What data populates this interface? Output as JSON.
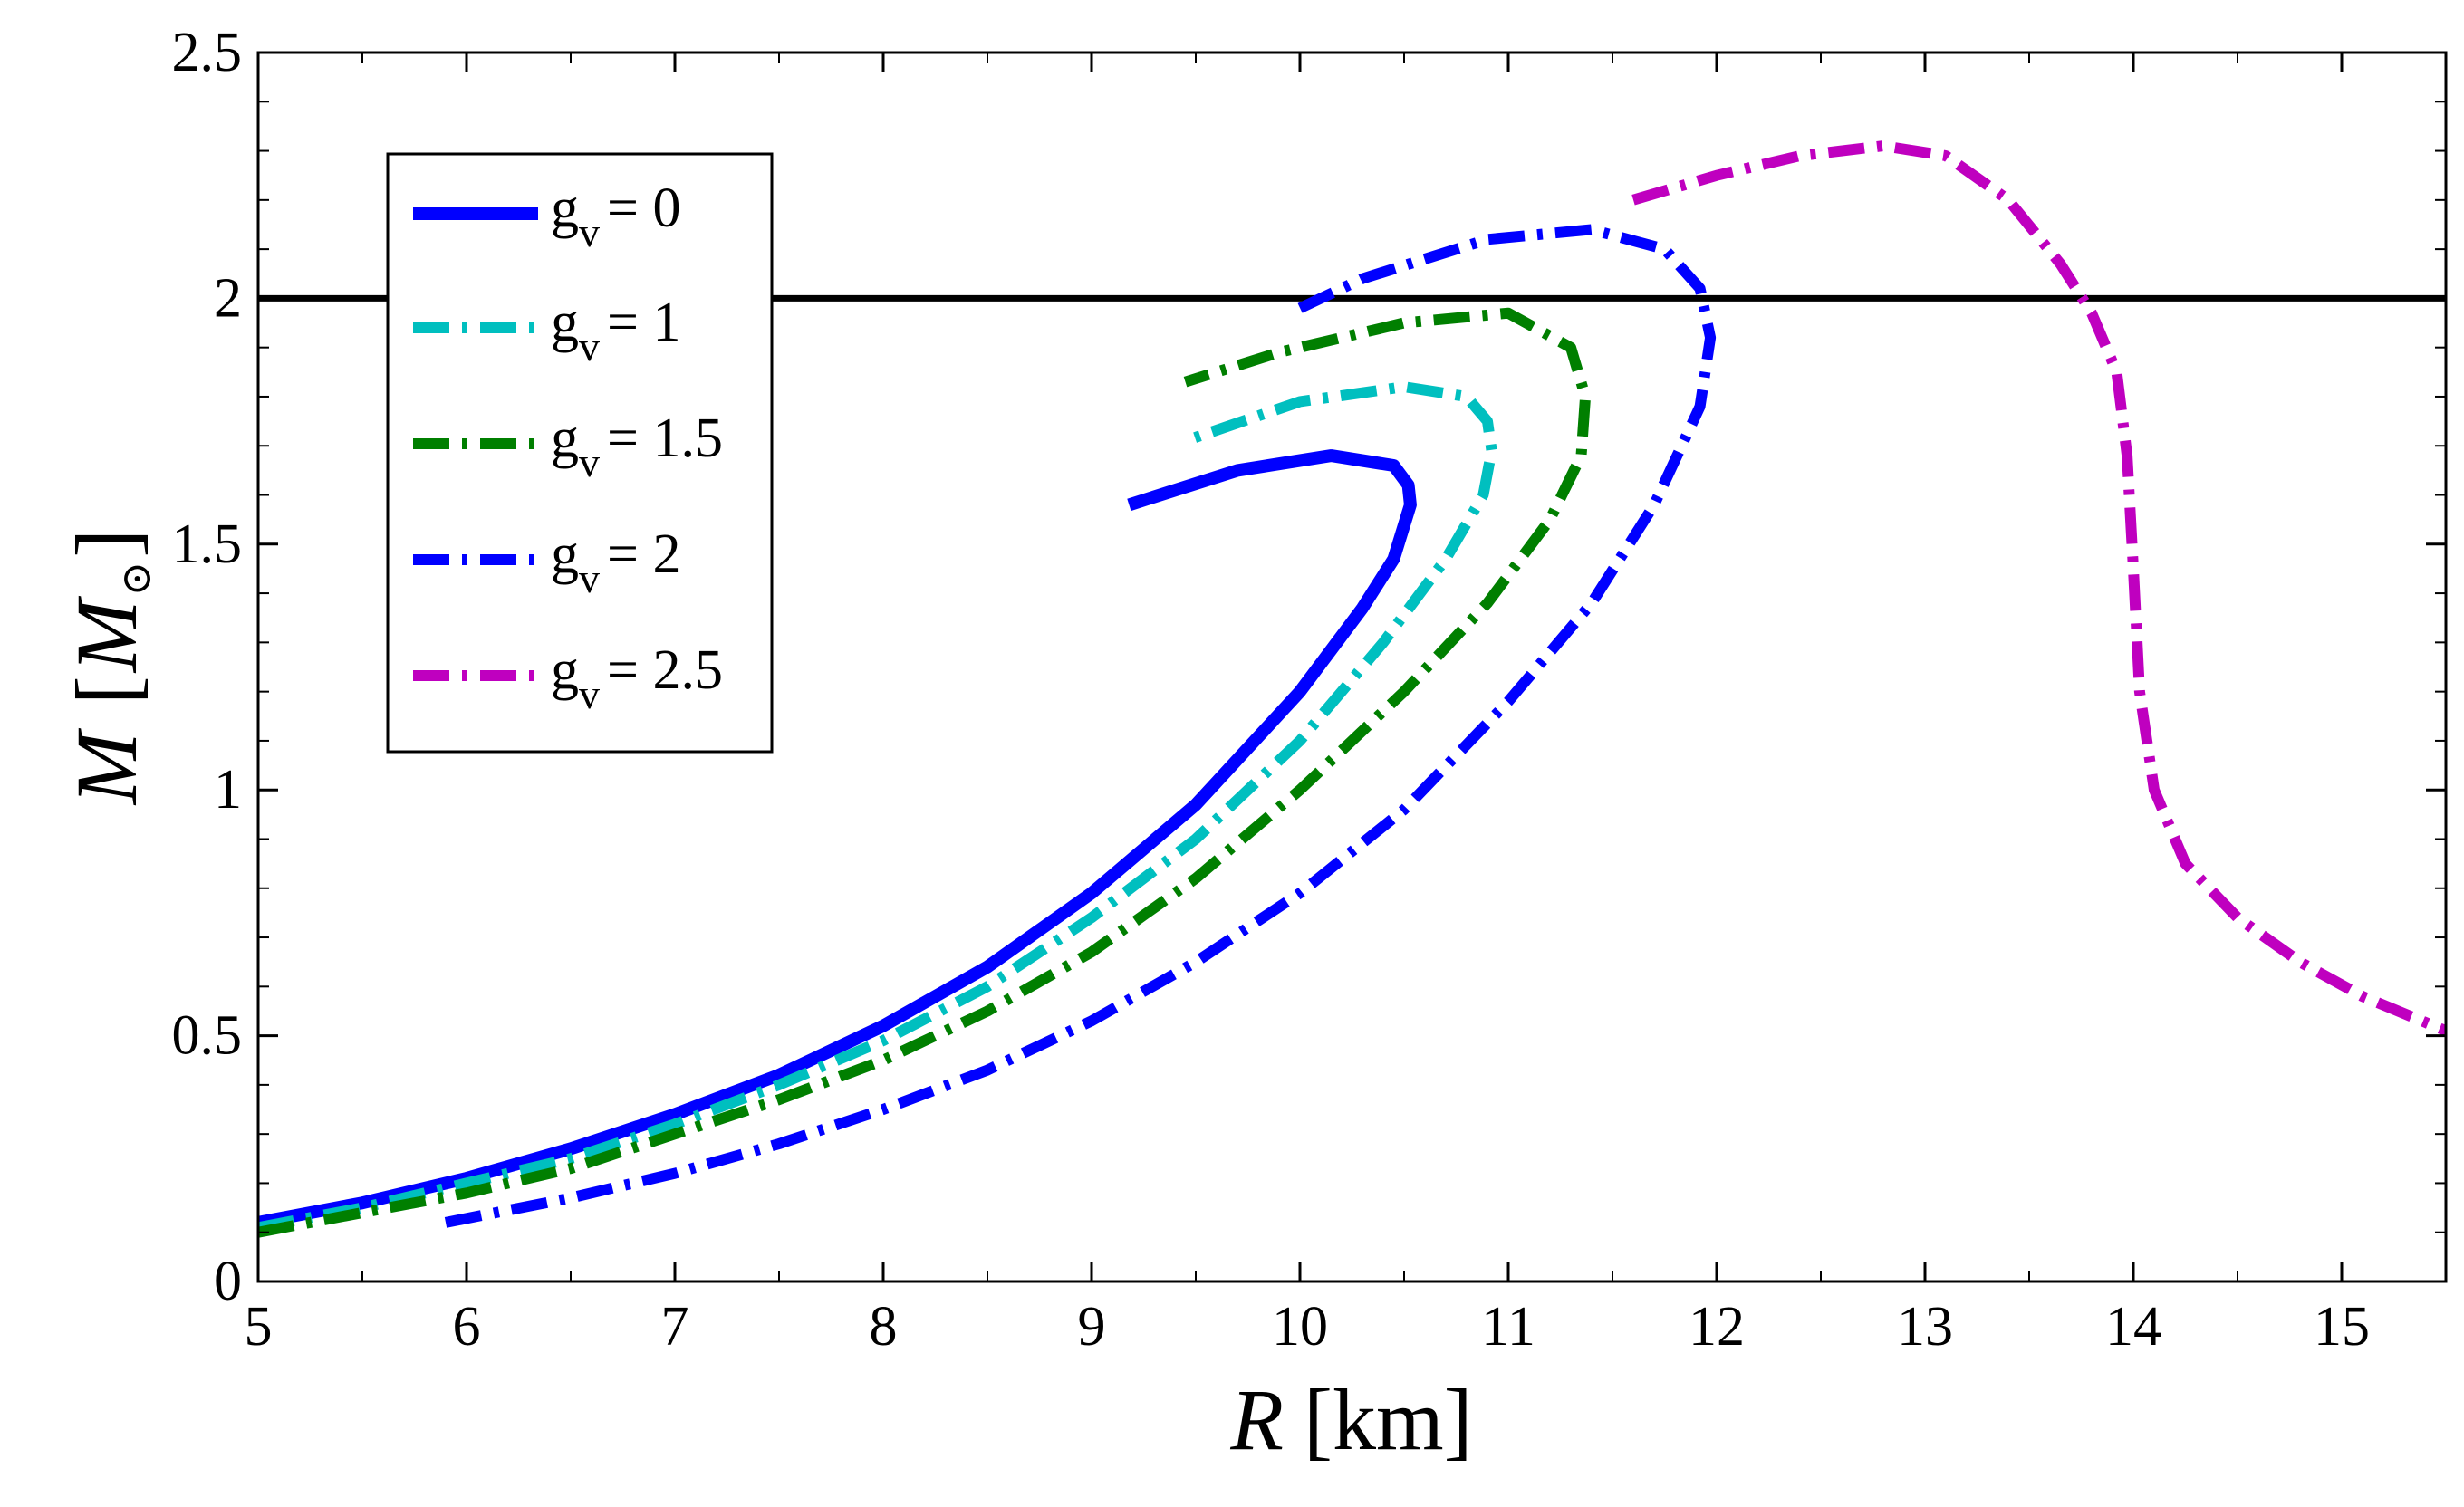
{
  "chart_data": {
    "type": "line",
    "title": "",
    "xlabel": {
      "var": "R",
      "unit": "[km]"
    },
    "ylabel": {
      "var": "M",
      "unit_open": "[",
      "unit_sym": "M",
      "unit_sub": "⊙",
      "unit_close": "]"
    },
    "xlim": [
      5,
      15.5
    ],
    "ylim": [
      0,
      2.5
    ],
    "xticks": [
      "5",
      "6",
      "7",
      "8",
      "9",
      "10",
      "11",
      "12",
      "13",
      "14",
      "15"
    ],
    "yticks": [
      "0",
      "0.5",
      "1",
      "1.5",
      "2",
      "2.5"
    ],
    "grid": false,
    "legend_position": "top-left",
    "reference_line": {
      "y": 2.0,
      "color": "#000000"
    },
    "series": [
      {
        "name": "g_v = 0",
        "label_main": "g",
        "label_sub": "v",
        "label_value": "= 0",
        "color": "#0000ff",
        "style": "solid",
        "x": [
          5.0,
          5.5,
          6.0,
          6.5,
          7.0,
          7.5,
          8.0,
          8.5,
          9.0,
          9.5,
          10.0,
          10.3,
          10.45,
          10.53,
          10.52,
          10.45,
          10.15,
          9.7,
          9.18
        ],
        "y": [
          0.12,
          0.16,
          0.21,
          0.27,
          0.34,
          0.42,
          0.52,
          0.64,
          0.79,
          0.97,
          1.2,
          1.37,
          1.47,
          1.58,
          1.62,
          1.66,
          1.68,
          1.65,
          1.58
        ]
      },
      {
        "name": "g_v = 1",
        "label_main": "g",
        "label_sub": "v",
        "label_value": "= 1",
        "color": "#00bfbf",
        "style": "dashdot",
        "x": [
          5.0,
          5.5,
          6.0,
          6.5,
          7.0,
          7.5,
          8.0,
          8.5,
          9.0,
          9.5,
          10.0,
          10.4,
          10.7,
          10.88,
          10.92,
          10.9,
          10.8,
          10.5,
          10.0,
          9.45
        ],
        "y": [
          0.11,
          0.15,
          0.2,
          0.25,
          0.32,
          0.4,
          0.49,
          0.6,
          0.74,
          0.9,
          1.1,
          1.3,
          1.47,
          1.6,
          1.69,
          1.75,
          1.8,
          1.82,
          1.79,
          1.71
        ]
      },
      {
        "name": "g_v = 1.5",
        "label_main": "g",
        "label_sub": "v",
        "label_value": "= 1.5",
        "color": "#007f00",
        "style": "dashdot",
        "x": [
          5.0,
          5.5,
          6.0,
          6.5,
          7.0,
          7.5,
          8.0,
          8.5,
          9.0,
          9.5,
          10.0,
          10.5,
          10.9,
          11.2,
          11.35,
          11.37,
          11.3,
          11.0,
          10.5,
          9.9,
          9.45
        ],
        "y": [
          0.1,
          0.14,
          0.18,
          0.23,
          0.3,
          0.37,
          0.45,
          0.55,
          0.67,
          0.82,
          1.0,
          1.2,
          1.38,
          1.55,
          1.68,
          1.8,
          1.9,
          1.97,
          1.95,
          1.89,
          1.83
        ]
      },
      {
        "name": "g_v = 2",
        "label_main": "g",
        "label_sub": "v",
        "label_value": "= 2",
        "color": "#0000ff",
        "style": "dashdot",
        "x": [
          5.9,
          6.5,
          7.0,
          7.5,
          8.0,
          8.5,
          9.0,
          9.5,
          10.0,
          10.5,
          11.0,
          11.4,
          11.7,
          11.92,
          11.97,
          11.92,
          11.75,
          11.4,
          10.9,
          10.3,
          10.0
        ],
        "y": [
          0.12,
          0.17,
          0.22,
          0.28,
          0.35,
          0.43,
          0.53,
          0.65,
          0.79,
          0.96,
          1.18,
          1.38,
          1.58,
          1.78,
          1.92,
          2.02,
          2.1,
          2.14,
          2.12,
          2.04,
          1.98
        ]
      },
      {
        "name": "g_v = 2.5",
        "label_main": "g",
        "label_sub": "v",
        "label_value": "= 2.5",
        "color": "#bf00bf",
        "style": "dashdot",
        "x": [
          11.6,
          12.0,
          12.4,
          12.8,
          13.1,
          13.4,
          13.65,
          13.8,
          13.92,
          13.97,
          14.0,
          14.03,
          14.1,
          14.25,
          14.5,
          14.8,
          15.1,
          15.5
        ],
        "y": [
          2.2,
          2.25,
          2.29,
          2.31,
          2.29,
          2.2,
          2.07,
          1.97,
          1.85,
          1.68,
          1.45,
          1.2,
          1.0,
          0.85,
          0.74,
          0.65,
          0.58,
          0.51
        ]
      }
    ]
  }
}
